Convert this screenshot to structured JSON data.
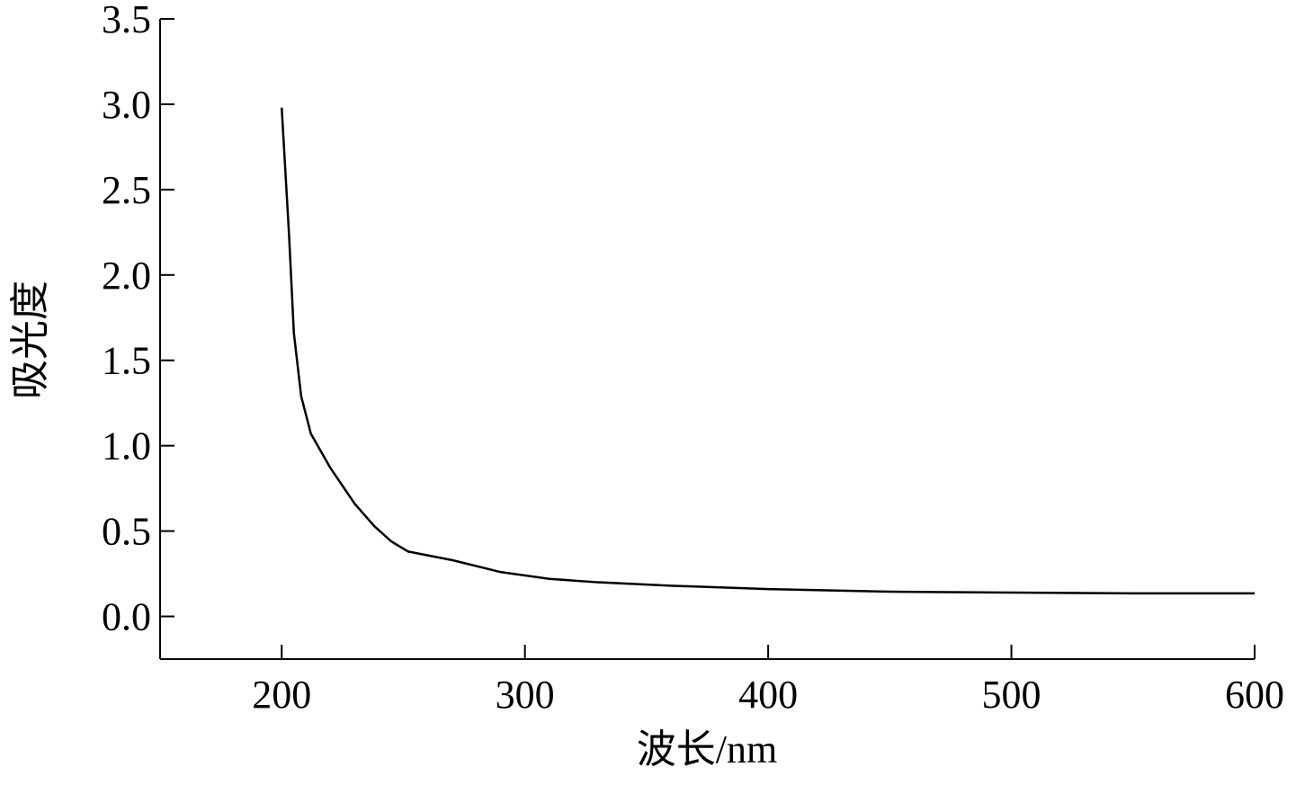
{
  "chart_data": {
    "type": "line",
    "x_label": "波长/nm",
    "y_label": "吸光度",
    "x": [
      200,
      203,
      205,
      208,
      212,
      220,
      230,
      238,
      245,
      252,
      270,
      290,
      310,
      330,
      360,
      400,
      450,
      500,
      550,
      600
    ],
    "series": [
      {
        "color": "#000000",
        "values": [
          2.98,
          2.24,
          1.66,
          1.29,
          1.07,
          0.87,
          0.66,
          0.53,
          0.44,
          0.38,
          0.33,
          0.26,
          0.22,
          0.2,
          0.18,
          0.16,
          0.145,
          0.14,
          0.135,
          0.135
        ]
      }
    ],
    "xlim": [
      150,
      600
    ],
    "ylim": [
      -0.25,
      3.5
    ],
    "xticks": [
      200,
      300,
      400,
      500,
      600
    ],
    "yticks": [
      {
        "value": 0,
        "label": "0.0"
      },
      0.5,
      {
        "value": 1,
        "label": "1.0"
      },
      1.5,
      {
        "value": 2,
        "label": "2.0"
      },
      2.5,
      {
        "value": 3,
        "label": "3.0"
      },
      3.5
    ]
  }
}
